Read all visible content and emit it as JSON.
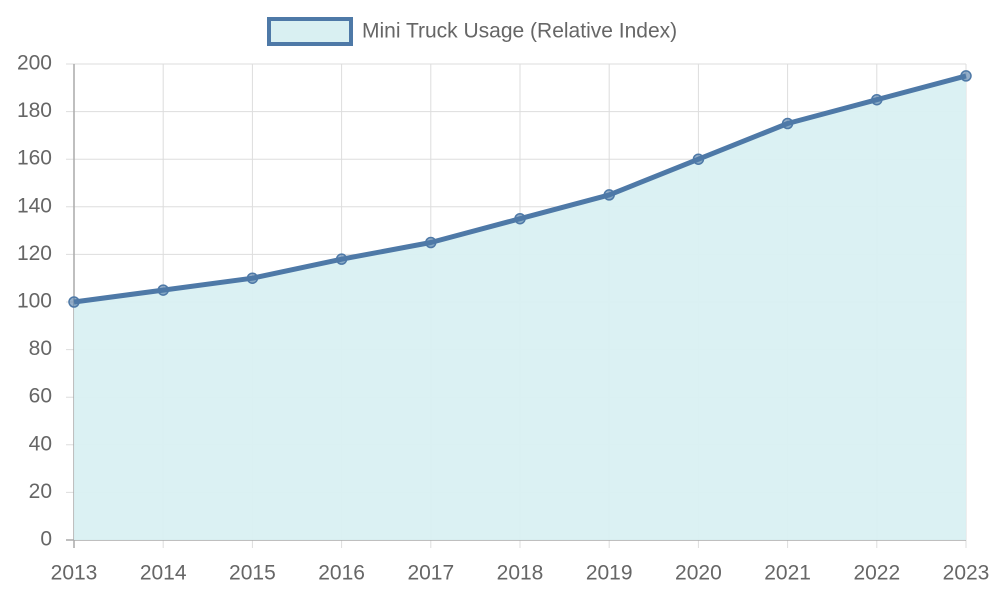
{
  "chart_data": {
    "type": "line",
    "categories": [
      "2013",
      "2014",
      "2015",
      "2016",
      "2017",
      "2018",
      "2019",
      "2020",
      "2021",
      "2022",
      "2023"
    ],
    "series": [
      {
        "name": "Mini Truck Usage (Relative Index)",
        "color": "#4e79a7",
        "values": [
          100,
          105,
          110,
          118,
          125,
          135,
          145,
          160,
          175,
          185,
          195
        ]
      }
    ],
    "fill": true,
    "area_color": "#d9f0f2",
    "ylim": [
      0,
      200
    ],
    "yticks": [
      0,
      20,
      40,
      60,
      80,
      100,
      120,
      140,
      160,
      180,
      200
    ],
    "grid": true,
    "legend": "top"
  }
}
